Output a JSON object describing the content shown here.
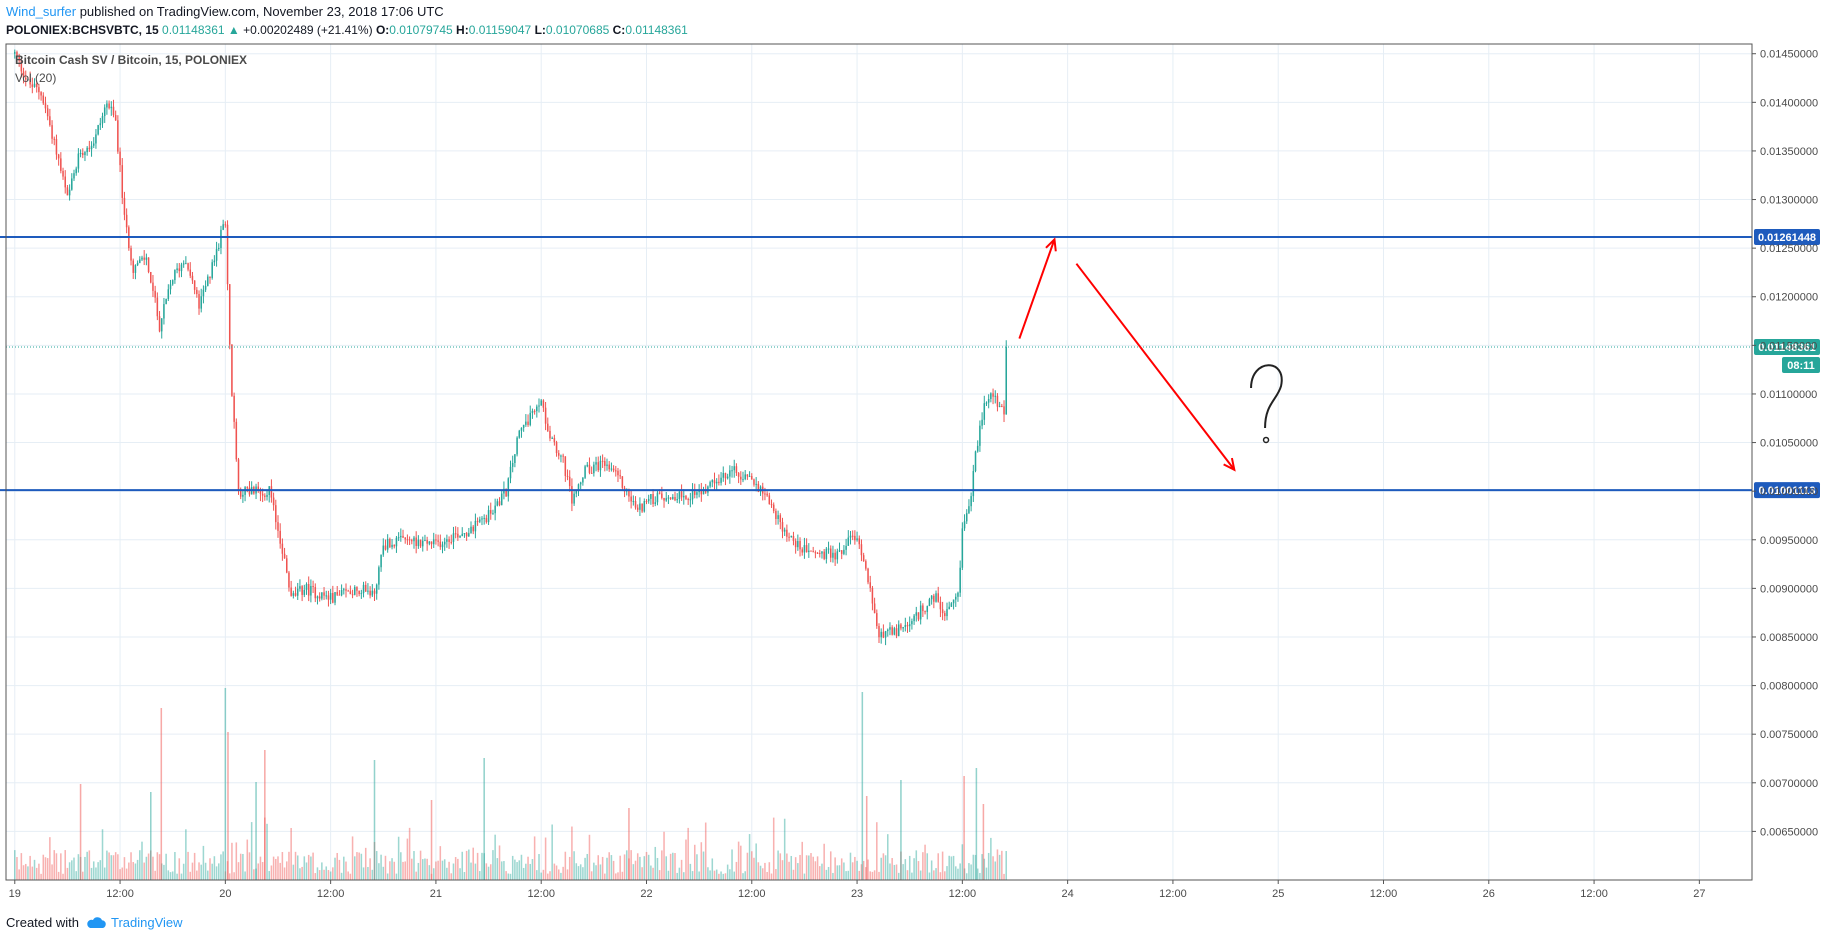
{
  "header": {
    "author": "Wind_surfer",
    "published": "published on TradingView.com, November 23, 2018 17:06 UTC"
  },
  "ohlc": {
    "symbol": "POLONIEX:BCHSVBTC, 15",
    "last": "0.01148361",
    "change": "+0.00202489 (+21.41%)",
    "o_label": "O:",
    "o": "0.01079745",
    "h_label": "H:",
    "h": "0.01159047",
    "l_label": "L:",
    "l": "0.01070685",
    "c_label": "C:",
    "c": "0.01148361"
  },
  "legend": {
    "title": "Bitcoin Cash SV / Bitcoin, 15, POLONIEX",
    "volume": "Vol (20)"
  },
  "footer": {
    "created_with": "Created with",
    "brand": "TradingView"
  },
  "colors": {
    "up": "#26a69a",
    "down": "#ef5350",
    "level_line": "#1e5bbd",
    "arrow": "#ff0000",
    "grid": "#e6eef5"
  },
  "chart_data": {
    "type": "candlestick",
    "title": "Bitcoin Cash SV / Bitcoin, 15, POLONIEX",
    "ylim": [
      0.006,
      0.0146
    ],
    "y_ticks": [
      "0.01450000",
      "0.01400000",
      "0.01350000",
      "0.01300000",
      "0.01250000",
      "0.01200000",
      "0.01150000",
      "0.01100000",
      "0.01050000",
      "0.01000000",
      "0.00950000",
      "0.00900000",
      "0.00850000",
      "0.00800000",
      "0.00750000",
      "0.00700000",
      "0.00650000"
    ],
    "y_tick_values": [
      0.0145,
      0.014,
      0.0135,
      0.013,
      0.0125,
      0.012,
      0.0115,
      0.011,
      0.0105,
      0.01,
      0.0095,
      0.009,
      0.0085,
      0.008,
      0.0075,
      0.007,
      0.0065
    ],
    "x_ticks": [
      "19",
      "12:00",
      "20",
      "12:00",
      "21",
      "12:00",
      "22",
      "12:00",
      "23",
      "12:00",
      "24",
      "12:00",
      "25",
      "12:00",
      "26",
      "12:00",
      "27"
    ],
    "x_tick_hours": [
      0,
      12,
      24,
      36,
      48,
      60,
      72,
      84,
      96,
      108,
      120,
      132,
      144,
      156,
      168,
      180,
      192
    ],
    "xlim_hours": [
      -1,
      198
    ],
    "bar_interval_hours": 0.25,
    "price_path": [
      [
        0.0,
        0.0145
      ],
      [
        1.5,
        0.0142
      ],
      [
        3.0,
        0.0141
      ],
      [
        4.5,
        0.0136
      ],
      [
        6.0,
        0.013
      ],
      [
        7.5,
        0.0135
      ],
      [
        9.0,
        0.0136
      ],
      [
        10.5,
        0.014
      ],
      [
        11.5,
        0.0138
      ],
      [
        12.5,
        0.0128
      ],
      [
        13.5,
        0.0123
      ],
      [
        15.0,
        0.0124
      ],
      [
        16.5,
        0.0117
      ],
      [
        18.0,
        0.0122
      ],
      [
        19.5,
        0.0124
      ],
      [
        21.0,
        0.0119
      ],
      [
        22.5,
        0.0123
      ],
      [
        24.0,
        0.0128
      ],
      [
        24.6,
        0.0112
      ],
      [
        25.5,
        0.01
      ],
      [
        27.0,
        0.01
      ],
      [
        29.0,
        0.01
      ],
      [
        30.5,
        0.0094
      ],
      [
        31.5,
        0.0089
      ],
      [
        33.0,
        0.009
      ],
      [
        36.0,
        0.0089
      ],
      [
        39.0,
        0.009
      ],
      [
        41.0,
        0.00895
      ],
      [
        42.0,
        0.00945
      ],
      [
        45.0,
        0.0095
      ],
      [
        48.0,
        0.00945
      ],
      [
        50.0,
        0.00955
      ],
      [
        52.0,
        0.0096
      ],
      [
        54.0,
        0.00975
      ],
      [
        56.0,
        0.01
      ],
      [
        57.5,
        0.0106
      ],
      [
        59.0,
        0.0108
      ],
      [
        60.0,
        0.0109
      ],
      [
        61.0,
        0.0106
      ],
      [
        62.5,
        0.0103
      ],
      [
        63.5,
        0.0099
      ],
      [
        65.0,
        0.0102
      ],
      [
        67.0,
        0.0103
      ],
      [
        69.0,
        0.0101
      ],
      [
        71.0,
        0.0098
      ],
      [
        72.0,
        0.0099
      ],
      [
        74.0,
        0.00995
      ],
      [
        76.0,
        0.00995
      ],
      [
        78.0,
        0.01
      ],
      [
        80.0,
        0.0101
      ],
      [
        82.0,
        0.0102
      ],
      [
        84.0,
        0.0101
      ],
      [
        85.5,
        0.01
      ],
      [
        87.0,
        0.0097
      ],
      [
        88.5,
        0.0095
      ],
      [
        90.0,
        0.0094
      ],
      [
        92.0,
        0.00935
      ],
      [
        94.0,
        0.00935
      ],
      [
        95.5,
        0.00955
      ],
      [
        96.5,
        0.0094
      ],
      [
        97.5,
        0.009
      ],
      [
        98.5,
        0.0085
      ],
      [
        100.0,
        0.00855
      ],
      [
        102.0,
        0.0086
      ],
      [
        103.5,
        0.0088
      ],
      [
        105.0,
        0.0089
      ],
      [
        106.0,
        0.0087
      ],
      [
        107.5,
        0.0089
      ],
      [
        108.0,
        0.0096
      ],
      [
        109.0,
        0.01
      ],
      [
        110.0,
        0.0107
      ],
      [
        111.0,
        0.011
      ],
      [
        112.0,
        0.0109
      ],
      [
        112.8,
        0.0108
      ],
      [
        113.0,
        0.01148
      ]
    ],
    "volume_spikes_hours": [
      [
        7.5,
        0.48
      ],
      [
        15.5,
        0.44
      ],
      [
        16.7,
        0.86
      ],
      [
        24.0,
        0.96
      ],
      [
        24.3,
        0.74
      ],
      [
        27.5,
        0.49
      ],
      [
        28.5,
        0.65
      ],
      [
        41.0,
        0.6
      ],
      [
        47.5,
        0.4
      ],
      [
        53.5,
        0.61
      ],
      [
        70.0,
        0.36
      ],
      [
        96.6,
        0.94
      ],
      [
        97.1,
        0.42
      ],
      [
        101.0,
        0.5
      ],
      [
        108.2,
        0.52
      ],
      [
        109.6,
        0.56
      ],
      [
        110.4,
        0.38
      ]
    ],
    "horizontal_levels": [
      {
        "value": 0.01261448,
        "label": "0.01261448"
      },
      {
        "value": 0.01001113,
        "label": "0.01001113"
      }
    ],
    "last_price": {
      "value": 0.01148361,
      "label": "0.01148361",
      "countdown": "08:11"
    },
    "annotations": {
      "text": "?",
      "arrows": [
        {
          "from": [
            114.5,
            0.01157
          ],
          "to": [
            118.5,
            0.01259
          ]
        },
        {
          "from": [
            121.0,
            0.01234
          ],
          "to": [
            139.0,
            0.01022
          ]
        }
      ],
      "question_mark_at": [
        142.5,
        0.01065
      ]
    }
  }
}
